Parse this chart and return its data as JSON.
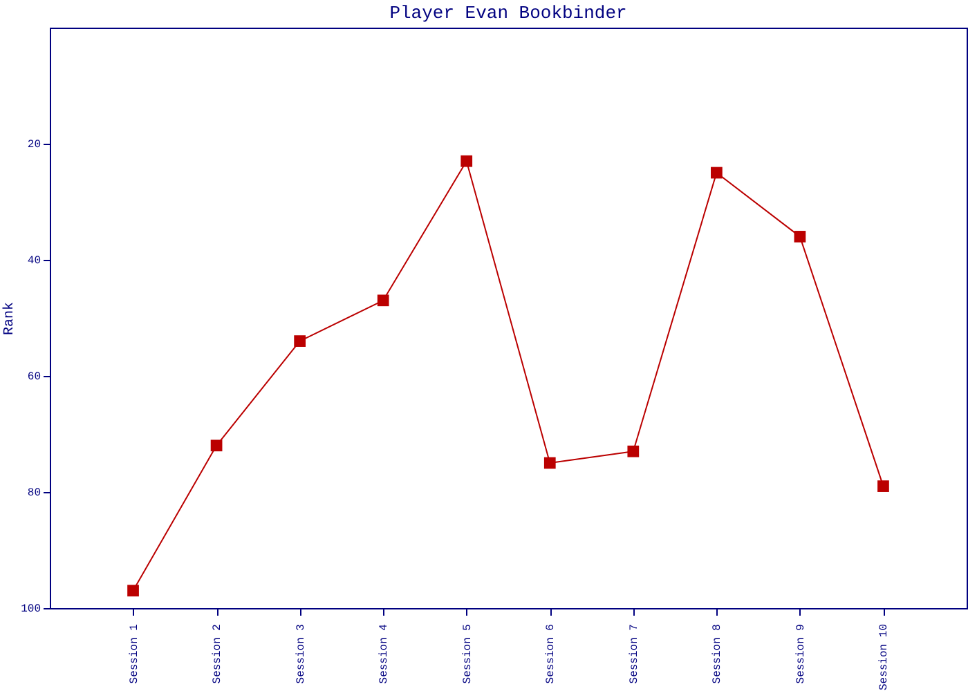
{
  "chart_data": {
    "type": "line",
    "title": "Player Evan Bookbinder",
    "ylabel": "Rank",
    "categories": [
      "Session 1",
      "Session 2",
      "Session 3",
      "Session 4",
      "Session 5",
      "Session 6",
      "Session 7",
      "Session 8",
      "Session 9",
      "Session 10"
    ],
    "series": [
      {
        "color": "#bb0000",
        "values": [
          97,
          72,
          54,
          47,
          23,
          75,
          73,
          25,
          36,
          79
        ]
      }
    ],
    "ylim": [
      100,
      0
    ],
    "yticks": [
      20,
      40,
      60,
      80,
      100
    ],
    "grid": false,
    "legend": false,
    "marker": "square",
    "line_style": "solid"
  }
}
